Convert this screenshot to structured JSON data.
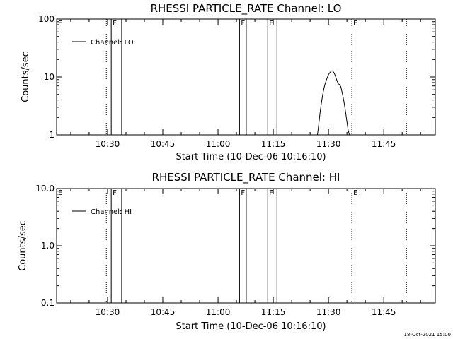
{
  "footer": {
    "timestamp": "18-Oct-2021 15:00"
  },
  "chart_data": [
    {
      "type": "line",
      "title": "RHESSI PARTICLE_RATE Channel: LO",
      "xlabel": "Start Time (10-Dec-06 10:16:10)",
      "ylabel": "Counts/sec",
      "y_scale": "log",
      "ylim": [
        1,
        100
      ],
      "xlim": [
        "10:16:10",
        "11:59:00"
      ],
      "x_tick_labels": [
        "10:30",
        "10:45",
        "11:00",
        "11:15",
        "11:30",
        "11:45"
      ],
      "y_tick_labels": [
        "1",
        "10",
        "100"
      ],
      "legend": {
        "position": "top-left",
        "entries": [
          "Channel: LO"
        ]
      },
      "series": [
        {
          "name": "Channel: LO",
          "x": [
            "11:27:00",
            "11:27:20",
            "11:27:40",
            "11:28:00",
            "11:28:20",
            "11:28:40",
            "11:29:00",
            "11:29:20",
            "11:29:40",
            "11:30:00",
            "11:30:20",
            "11:30:40",
            "11:31:00",
            "11:31:20",
            "11:31:40",
            "11:32:00",
            "11:32:20",
            "11:32:40",
            "11:33:00",
            "11:33:20",
            "11:33:40",
            "11:34:00",
            "11:34:20",
            "11:34:40",
            "11:35:00",
            "11:35:20",
            "11:35:40",
            "11:36:00"
          ],
          "values": [
            1.0,
            1.5,
            2.3,
            3.3,
            4.6,
            6.0,
            7.3,
            8.6,
            9.8,
            11.0,
            11.8,
            12.5,
            12.8,
            12.2,
            11.2,
            9.8,
            8.5,
            7.6,
            7.4,
            6.8,
            5.5,
            4.4,
            3.3,
            2.4,
            1.7,
            1.2,
            1.0,
            1.0
          ]
        }
      ],
      "annotations": [
        {
          "label": "E",
          "time": "10:16:10",
          "style": "dotted"
        },
        {
          "label": "",
          "time": "10:29:40",
          "style": "dotted"
        },
        {
          "label": "F",
          "time": "10:31:00",
          "style": "solid"
        },
        {
          "label": "",
          "time": "10:33:50",
          "style": "solid"
        },
        {
          "label": "F",
          "time": "11:05:50",
          "style": "solid"
        },
        {
          "label": "",
          "time": "11:07:40",
          "style": "solid"
        },
        {
          "label": "F",
          "time": "11:13:30",
          "style": "solid"
        },
        {
          "label": "",
          "time": "11:16:00",
          "style": "solid"
        },
        {
          "label": "E",
          "time": "11:36:20",
          "style": "dotted"
        },
        {
          "label": "",
          "time": "11:51:10",
          "style": "dotted"
        }
      ]
    },
    {
      "type": "line",
      "title": "RHESSI PARTICLE_RATE Channel: HI",
      "xlabel": "Start Time (10-Dec-06 10:16:10)",
      "ylabel": "Counts/sec",
      "y_scale": "log",
      "ylim": [
        0.1,
        10.0
      ],
      "xlim": [
        "10:16:10",
        "11:59:00"
      ],
      "x_tick_labels": [
        "10:30",
        "10:45",
        "11:00",
        "11:15",
        "11:30",
        "11:45"
      ],
      "y_tick_labels": [
        "0.1",
        "1.0",
        "10.0"
      ],
      "legend": {
        "position": "top-left",
        "entries": [
          "Channel: HI"
        ]
      },
      "series": [
        {
          "name": "Channel: HI",
          "x": [],
          "values": []
        }
      ],
      "annotations": [
        {
          "label": "E",
          "time": "10:16:10",
          "style": "dotted"
        },
        {
          "label": "",
          "time": "10:29:40",
          "style": "dotted"
        },
        {
          "label": "F",
          "time": "10:31:00",
          "style": "solid"
        },
        {
          "label": "",
          "time": "10:33:50",
          "style": "solid"
        },
        {
          "label": "F",
          "time": "11:05:50",
          "style": "solid"
        },
        {
          "label": "",
          "time": "11:07:40",
          "style": "solid"
        },
        {
          "label": "F",
          "time": "11:13:30",
          "style": "solid"
        },
        {
          "label": "",
          "time": "11:16:00",
          "style": "solid"
        },
        {
          "label": "E",
          "time": "11:36:20",
          "style": "dotted"
        },
        {
          "label": "",
          "time": "11:51:10",
          "style": "dotted"
        }
      ]
    }
  ]
}
